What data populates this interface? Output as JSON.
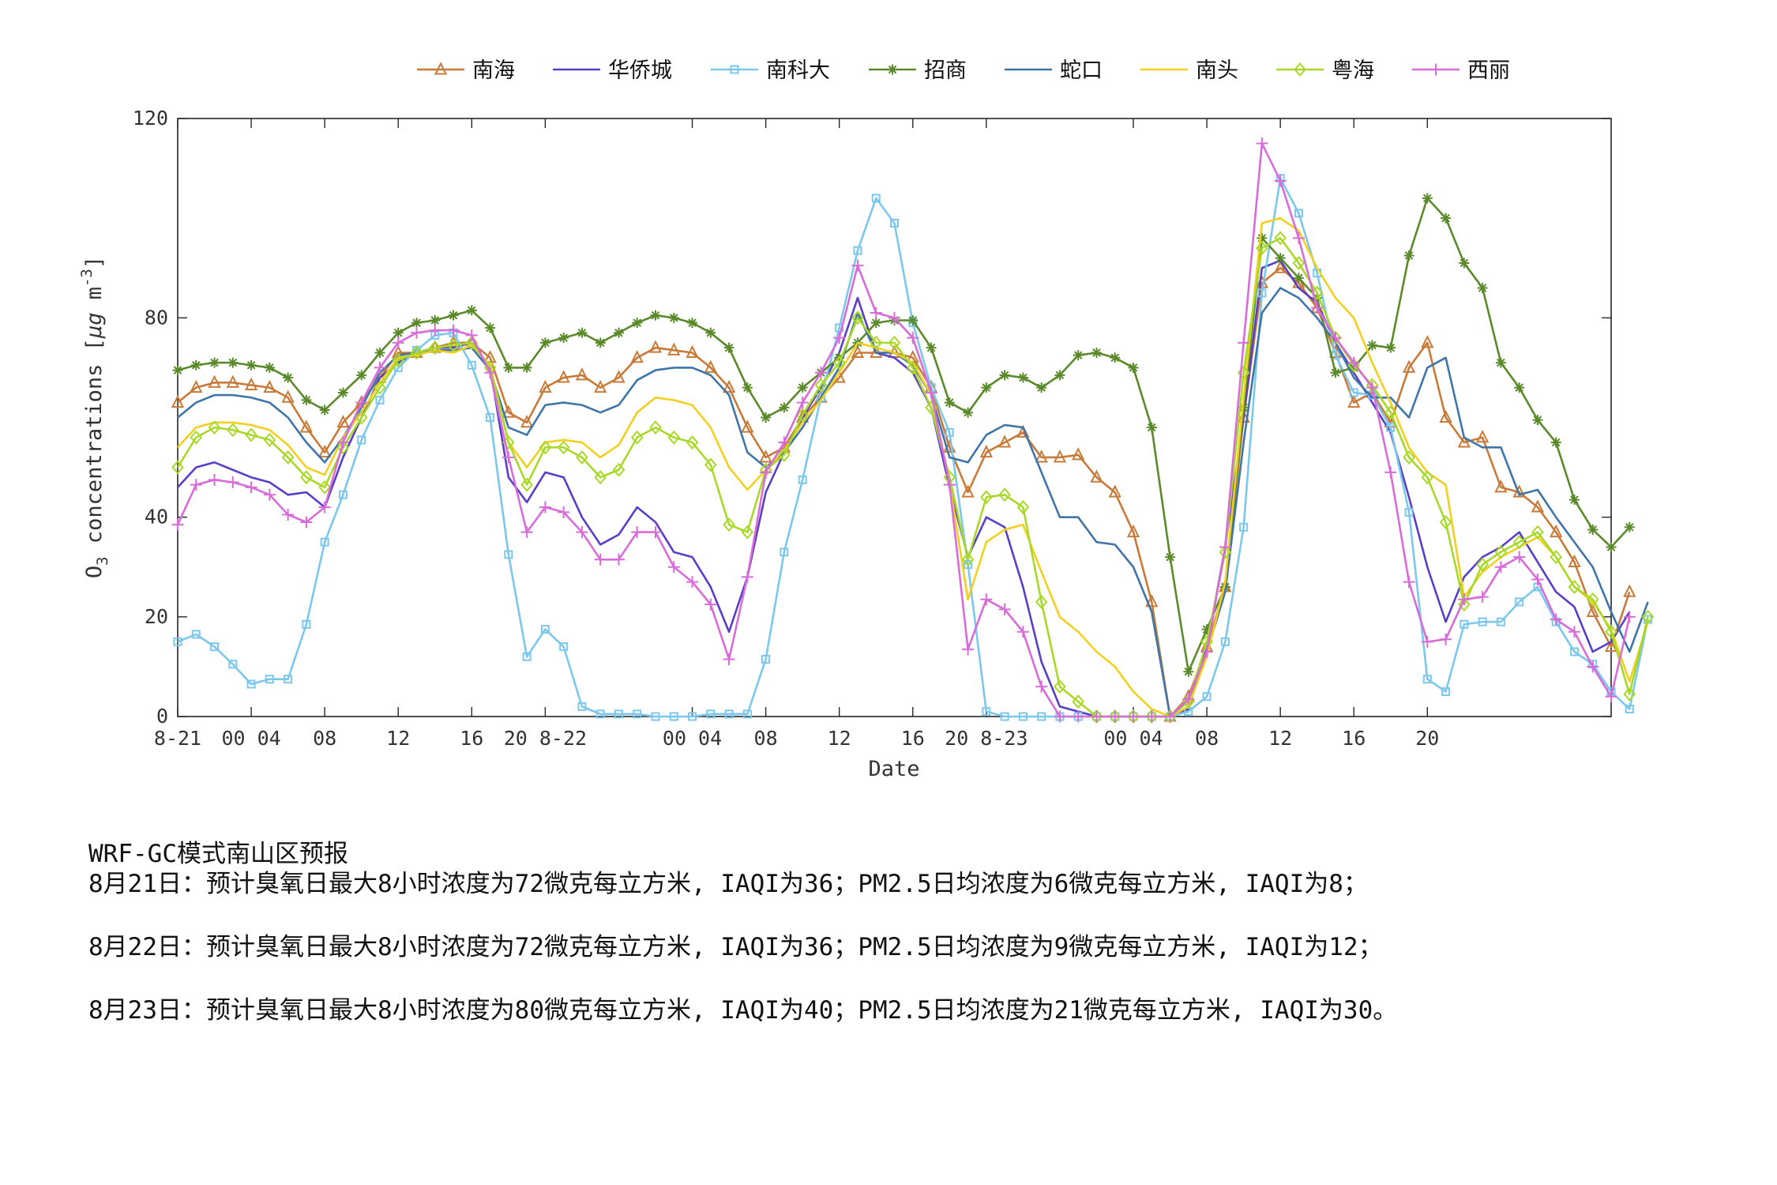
{
  "chart_data": {
    "type": "line",
    "xlabel": "Date",
    "ylabel": "O3 concentrations [μg m-3]",
    "ylim": [
      0,
      120
    ],
    "yticks": [
      "0",
      "20",
      "40",
      "80",
      "120"
    ],
    "xlim": [
      0,
      78
    ],
    "xticks": [
      {
        "h": 0,
        "label": "8-21"
      },
      {
        "h": 4,
        "label": "00 04"
      },
      {
        "h": 8,
        "label": "08"
      },
      {
        "h": 12,
        "label": "12"
      },
      {
        "h": 16,
        "label": "16"
      },
      {
        "h": 20,
        "label": "20 8-22"
      },
      {
        "h": 28,
        "label": "00 04"
      },
      {
        "h": 32,
        "label": "08"
      },
      {
        "h": 36,
        "label": "12"
      },
      {
        "h": 40,
        "label": "16"
      },
      {
        "h": 44,
        "label": "20 8-23"
      },
      {
        "h": 52,
        "label": "00 04"
      },
      {
        "h": 56,
        "label": "08"
      },
      {
        "h": 60,
        "label": "12"
      },
      {
        "h": 64,
        "label": "16"
      },
      {
        "h": 68,
        "label": "20"
      }
    ],
    "x_start_hour": 0,
    "legend_position": "top",
    "grid": false,
    "series": [
      {
        "name": "南海",
        "color": "#c87a38",
        "marker": "triangle",
        "values": [
          63,
          66,
          67,
          67,
          66.5,
          66,
          64,
          58,
          53,
          59,
          63,
          68,
          73,
          73,
          74,
          75,
          75,
          72,
          61,
          59,
          66,
          68,
          68.5,
          66,
          68,
          72,
          74,
          73.5,
          73,
          70,
          66,
          58,
          52,
          54,
          60,
          64,
          68,
          73,
          73,
          73,
          72,
          66,
          54,
          45,
          53,
          55,
          57,
          52,
          52,
          52.5,
          48,
          45,
          37,
          23,
          0,
          4,
          14,
          26,
          60,
          87,
          90,
          87,
          82,
          73,
          63,
          65,
          59,
          70,
          75,
          60,
          55,
          56,
          46,
          45,
          42,
          37,
          31,
          21,
          14,
          25
        ]
      },
      {
        "name": "华侨城",
        "color": "#5a3ec8",
        "marker": "none",
        "values": [
          46,
          50,
          51,
          49.5,
          48,
          47,
          44.5,
          45,
          42,
          52,
          60,
          68,
          71,
          73,
          74,
          74,
          75,
          70,
          48,
          43,
          49,
          48,
          40,
          34.5,
          36.5,
          42,
          39,
          33,
          32,
          26,
          17,
          28,
          45,
          53,
          60,
          66,
          73,
          84,
          73,
          72,
          69,
          62,
          46,
          32,
          40,
          38,
          26,
          11,
          2,
          1,
          0,
          0,
          0,
          0,
          0,
          1.5,
          14,
          34,
          60,
          90,
          91.5,
          86,
          83,
          75,
          69,
          63,
          57,
          44,
          30,
          19,
          28,
          32,
          34,
          37,
          31,
          25,
          22,
          13,
          15,
          21
        ]
      },
      {
        "name": "南科大",
        "color": "#7cc7ec",
        "marker": "square",
        "values": [
          15,
          16.5,
          14,
          10.5,
          6.5,
          7.5,
          7.5,
          18.5,
          35,
          44.5,
          55.5,
          63.5,
          70,
          73.5,
          76.5,
          77,
          70.5,
          60,
          32.5,
          12,
          17.5,
          14,
          2,
          0.5,
          0.5,
          0.5,
          0,
          0,
          0,
          0.5,
          0.5,
          0.5,
          11.5,
          33,
          47.5,
          64,
          78,
          93.5,
          104,
          99,
          79,
          66,
          57,
          30.5,
          1,
          0,
          0,
          0,
          0,
          0,
          0,
          0,
          0,
          0,
          0,
          1,
          4,
          15,
          38,
          85,
          108,
          101,
          89,
          72.5,
          65,
          64.5,
          58,
          41,
          7.5,
          5,
          18.5,
          19,
          19,
          23,
          26,
          19,
          13,
          10.5,
          5,
          1.5,
          19.5
        ]
      },
      {
        "name": "招商",
        "color": "#5a8a2a",
        "marker": "star",
        "values": [
          69.5,
          70.5,
          71,
          71,
          70.5,
          70,
          68,
          63.5,
          61.5,
          65,
          68.5,
          73,
          77,
          79,
          79.5,
          80.5,
          81.5,
          78,
          70,
          70,
          75,
          76,
          77,
          75,
          77,
          79,
          80.5,
          80,
          79,
          77,
          74,
          66,
          60,
          62,
          66,
          69,
          72,
          75,
          79,
          79.5,
          79.5,
          74,
          63,
          61,
          66,
          68.5,
          68,
          66,
          68.5,
          72.5,
          73,
          72,
          70,
          58,
          32,
          9,
          17.5,
          26,
          62,
          96,
          92,
          88,
          84,
          69,
          70,
          74.5,
          74,
          92.5,
          104,
          100,
          91,
          86,
          71,
          66,
          59.5,
          55,
          43.5,
          37.5,
          34,
          38
        ]
      },
      {
        "name": "蛇口",
        "color": "#3f75a8",
        "marker": "none",
        "values": [
          60,
          63,
          64.5,
          64.5,
          64,
          63,
          60,
          55,
          51,
          56,
          62,
          69,
          72.5,
          73,
          73.5,
          73.5,
          74,
          69.5,
          58,
          56.5,
          62.5,
          63,
          62.5,
          61,
          62.5,
          67.5,
          69.5,
          70,
          70,
          68.5,
          64.5,
          53,
          50,
          53,
          58,
          64,
          70,
          81,
          73,
          73,
          70.5,
          64.5,
          52,
          51,
          56.5,
          58.5,
          58,
          49,
          40,
          40,
          35,
          34.5,
          30,
          21,
          0,
          3,
          13,
          25,
          55,
          81,
          86,
          84,
          80,
          75,
          68,
          64,
          64,
          60,
          70,
          72,
          56,
          54,
          54,
          44.5,
          45.5,
          40,
          35,
          30,
          21,
          13,
          23
        ]
      },
      {
        "name": "南头",
        "color": "#f2d020",
        "marker": "none",
        "values": [
          54,
          58,
          59,
          59,
          58.5,
          57.5,
          54.5,
          50,
          48.5,
          56,
          61,
          67,
          72,
          72.5,
          73.5,
          73,
          74.5,
          70.5,
          55,
          50,
          55,
          55.5,
          55,
          52,
          54.5,
          61,
          64,
          63.5,
          62.5,
          58,
          50,
          45.5,
          49.5,
          53.5,
          59,
          63.5,
          69,
          75,
          74,
          73,
          71,
          64.5,
          47,
          23.5,
          35,
          37.5,
          38.5,
          29,
          20,
          17,
          13,
          10,
          5,
          1.5,
          0,
          2,
          12,
          27,
          64,
          99,
          100,
          97.5,
          90,
          84,
          80,
          71,
          63,
          54,
          49,
          46.5,
          24,
          29,
          32,
          34,
          36,
          32,
          26,
          23,
          17.5,
          7,
          19
        ]
      },
      {
        "name": "粤海",
        "color": "#a8d828",
        "marker": "diamond",
        "values": [
          50,
          56,
          58,
          57.5,
          56.5,
          55.5,
          52,
          48,
          46,
          54,
          60,
          66,
          71.5,
          73,
          74,
          74.5,
          75,
          70,
          55,
          46.5,
          54,
          54,
          52,
          48,
          49.5,
          56,
          58,
          56,
          55,
          50.5,
          38.5,
          37,
          49.5,
          52.5,
          60.5,
          66.5,
          71,
          80,
          75,
          75,
          70,
          62,
          48,
          31.5,
          44,
          44.5,
          42,
          23,
          6,
          3,
          0,
          0,
          0,
          0,
          0,
          3,
          15,
          33,
          69,
          94,
          96,
          91,
          85,
          76,
          70.5,
          66.5,
          61,
          52,
          48,
          39,
          22.5,
          30.5,
          33,
          35,
          37,
          32,
          26,
          23.5,
          17,
          4.5,
          20
        ]
      },
      {
        "name": "西丽",
        "color": "#d86cd8",
        "marker": "plus",
        "values": [
          38.5,
          46.5,
          47.5,
          47,
          46,
          44.5,
          40.5,
          39,
          42,
          55,
          63,
          70,
          75,
          77,
          77.5,
          77.5,
          76.5,
          69,
          52,
          37,
          42,
          41,
          37,
          31.5,
          31.5,
          37,
          37,
          30,
          27,
          22.5,
          11.5,
          28,
          49,
          55,
          63,
          69,
          76,
          90.5,
          81,
          80,
          76,
          65,
          46.5,
          13.5,
          23.5,
          21.5,
          17,
          6,
          0,
          0,
          0,
          0,
          0,
          0,
          0,
          3.5,
          13,
          34,
          75,
          115,
          107.5,
          96,
          82,
          76,
          71,
          66,
          49,
          27,
          15,
          15.5,
          23.5,
          24,
          30,
          32,
          27.5,
          19.5,
          17,
          10,
          4,
          20
        ]
      }
    ]
  },
  "forecast": {
    "title": "WRF-GC模式南山区预报",
    "lines": [
      "8月21日：预计臭氧日最大8小时浓度为72微克每立方米, IAQI为36；PM2.5日均浓度为6微克每立方米, IAQI为8；",
      "8月22日：预计臭氧日最大8小时浓度为72微克每立方米, IAQI为36；PM2.5日均浓度为9微克每立方米, IAQI为12；",
      "8月23日：预计臭氧日最大8小时浓度为80微克每立方米, IAQI为40；PM2.5日均浓度为21微克每立方米, IAQI为30。"
    ]
  }
}
